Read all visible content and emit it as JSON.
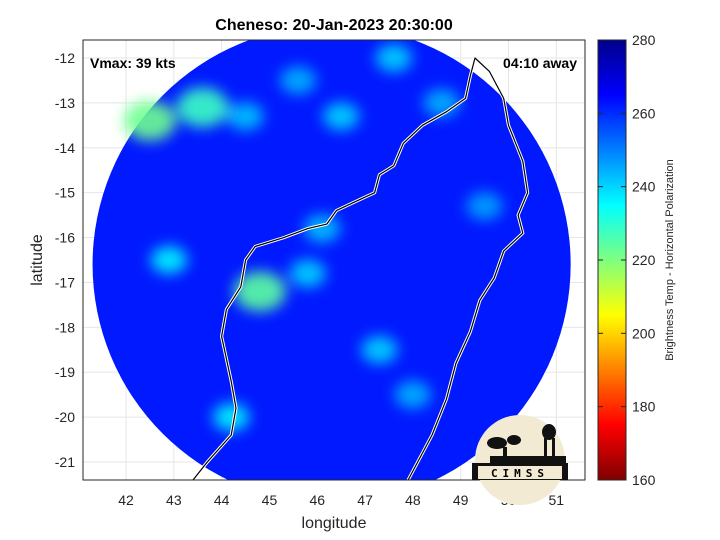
{
  "chart_data": {
    "type": "heatmap",
    "title": "Cheneso: 20-Jan-2023 20:30:00",
    "xlabel": "longitude",
    "ylabel": "latitude",
    "xlim": [
      41.1,
      51.6
    ],
    "ylim": [
      -21.4,
      -11.6
    ],
    "xticks": [
      42,
      43,
      44,
      45,
      46,
      47,
      48,
      49,
      50,
      51
    ],
    "yticks": [
      -12,
      -13,
      -14,
      -15,
      -16,
      -17,
      -18,
      -19,
      -20,
      -21
    ],
    "grid": true,
    "colorbar": {
      "label": "Brightness Temp - Horizontal Polarization",
      "range": [
        160,
        280
      ],
      "ticks": [
        280,
        260,
        240,
        220,
        200,
        180,
        160
      ],
      "colormap": "jet"
    },
    "annotations": {
      "vmax": "Vmax: 39 kts",
      "time_away": "04:10 away"
    },
    "logo_text": "CIMSS",
    "swath": {
      "center": [
        46.3,
        -16.6
      ],
      "radius_deg": 5.0,
      "background_value": 262
    },
    "features": [
      {
        "lon": 42.5,
        "lat": -13.4,
        "value": 222
      },
      {
        "lon": 43.6,
        "lat": -13.1,
        "value": 228
      },
      {
        "lon": 42.9,
        "lat": -16.5,
        "value": 236
      },
      {
        "lon": 44.8,
        "lat": -17.2,
        "value": 224
      },
      {
        "lon": 45.8,
        "lat": -16.8,
        "value": 240
      },
      {
        "lon": 47.3,
        "lat": -18.5,
        "value": 240
      },
      {
        "lon": 44.2,
        "lat": -20.0,
        "value": 236
      },
      {
        "lon": 44.5,
        "lat": -13.3,
        "value": 242
      },
      {
        "lon": 46.5,
        "lat": -13.3,
        "value": 240
      },
      {
        "lon": 48.6,
        "lat": -13.0,
        "value": 244
      },
      {
        "lon": 49.5,
        "lat": -15.3,
        "value": 246
      },
      {
        "lon": 48.0,
        "lat": -19.5,
        "value": 244
      },
      {
        "lon": 46.1,
        "lat": -15.8,
        "value": 242
      },
      {
        "lon": 47.6,
        "lat": -12.0,
        "value": 240
      },
      {
        "lon": 45.6,
        "lat": -12.5,
        "value": 244
      }
    ],
    "coastline": [
      [
        43.4,
        -21.4
      ],
      [
        43.7,
        -21.0
      ],
      [
        44.2,
        -20.4
      ],
      [
        44.3,
        -19.8
      ],
      [
        44.2,
        -19.2
      ],
      [
        44.1,
        -18.7
      ],
      [
        44.0,
        -18.2
      ],
      [
        44.1,
        -17.6
      ],
      [
        44.4,
        -17.1
      ],
      [
        44.5,
        -16.5
      ],
      [
        44.7,
        -16.2
      ],
      [
        45.3,
        -16.0
      ],
      [
        45.8,
        -15.8
      ],
      [
        46.2,
        -15.7
      ],
      [
        46.4,
        -15.4
      ],
      [
        46.8,
        -15.2
      ],
      [
        47.2,
        -15.0
      ],
      [
        47.3,
        -14.6
      ],
      [
        47.6,
        -14.4
      ],
      [
        47.8,
        -13.9
      ],
      [
        48.0,
        -13.7
      ],
      [
        48.2,
        -13.5
      ],
      [
        48.7,
        -13.2
      ],
      [
        49.1,
        -12.9
      ],
      [
        49.2,
        -12.4
      ],
      [
        49.3,
        -12.0
      ],
      [
        49.6,
        -12.3
      ],
      [
        49.9,
        -12.9
      ],
      [
        50.0,
        -13.5
      ],
      [
        50.3,
        -14.3
      ],
      [
        50.4,
        -15.0
      ],
      [
        50.2,
        -15.5
      ],
      [
        50.3,
        -15.9
      ],
      [
        49.9,
        -16.3
      ],
      [
        49.7,
        -16.9
      ],
      [
        49.4,
        -17.4
      ],
      [
        49.2,
        -18.1
      ],
      [
        48.9,
        -18.8
      ],
      [
        48.7,
        -19.6
      ],
      [
        48.4,
        -20.4
      ],
      [
        48.1,
        -21.0
      ],
      [
        47.9,
        -21.4
      ]
    ]
  }
}
